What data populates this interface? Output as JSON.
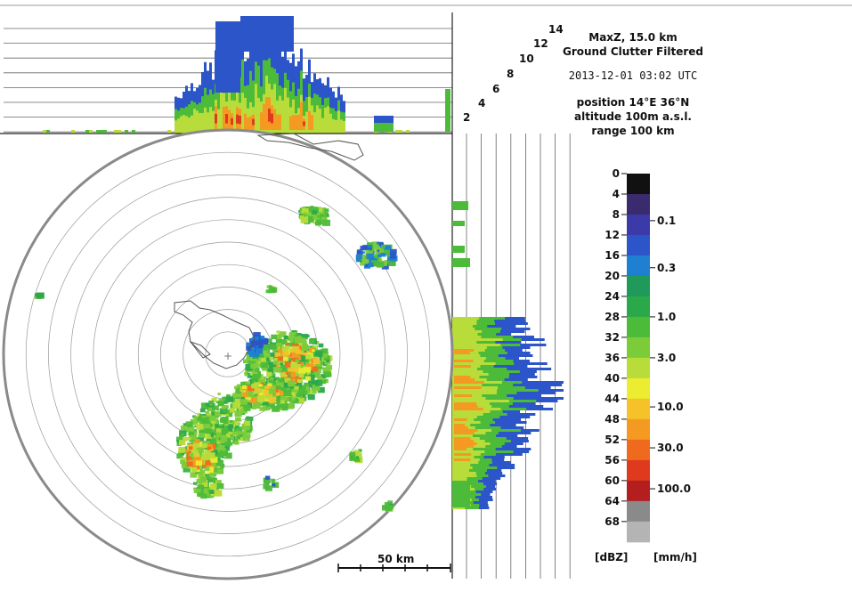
{
  "info": {
    "product": "MaxZ, 15.0 km",
    "filter": "Ground Clutter Filtered",
    "datetime": "2013-12-01 03:02 UTC",
    "position": "position 14°E 36°N",
    "altitude": "altitude 100m a.s.l.",
    "range": "range 100 km"
  },
  "height_labels": [
    "2",
    "4",
    "6",
    "8",
    "10",
    "12",
    "14"
  ],
  "scale_bar": {
    "label": "50 km"
  },
  "colorbar": {
    "dbz_ticks": [
      "0",
      "4",
      "8",
      "12",
      "16",
      "20",
      "24",
      "28",
      "32",
      "36",
      "40",
      "44",
      "48",
      "52",
      "56",
      "60",
      "64",
      "68"
    ],
    "rain_ticks": [
      "0.1",
      "0.3",
      "1.0",
      "3.0",
      "10.0",
      "30.0",
      "100.0"
    ],
    "unit_left": "[dBZ]",
    "unit_right": "[mm/h]",
    "colors": [
      "#111111",
      "#3a2a6e",
      "#3b3aa8",
      "#2b55c8",
      "#1f7fd0",
      "#1f9a5a",
      "#2aa84a",
      "#4dbb3a",
      "#7ccc3a",
      "#b8dc3a",
      "#ecec30",
      "#f6c22a",
      "#f49a22",
      "#f06a1e",
      "#e03a1e",
      "#b41e1e",
      "#8a8a8a",
      "#b4b4b4"
    ]
  }
}
